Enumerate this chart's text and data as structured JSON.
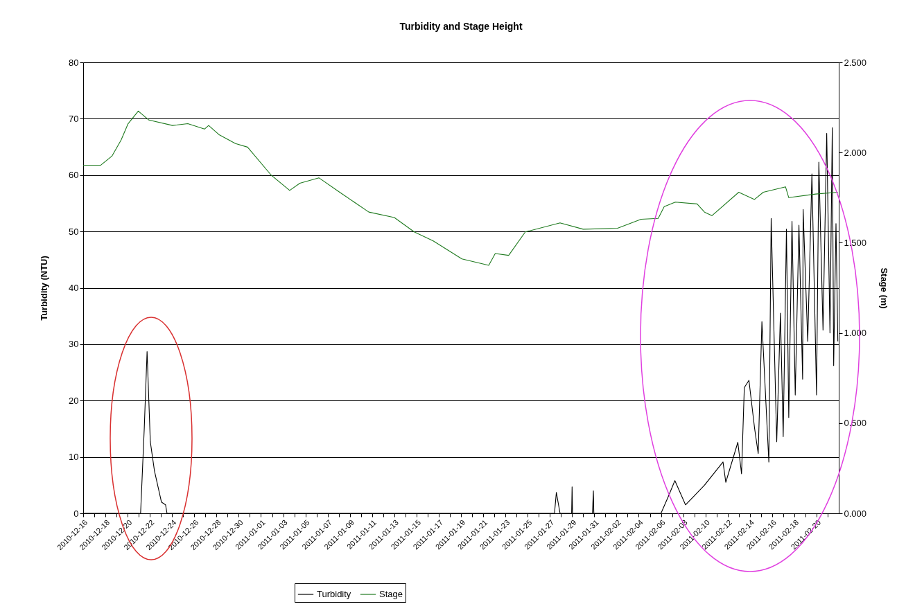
{
  "chart_data": {
    "type": "line",
    "title": "Turbidity and Stage Height",
    "ylabel": "Turbidity (NTU)",
    "y2label": "Stage (m)",
    "xlim": [
      "2010-12-16",
      "2011-02-22"
    ],
    "xticks": [
      "2010-12-16",
      {
        "value": "2010-12-17",
        "label": null
      },
      "2010-12-18",
      {
        "value": "2010-12-19",
        "label": null
      },
      "2010-12-20",
      {
        "value": "2010-12-21",
        "label": null
      },
      "2010-12-22",
      {
        "value": "2010-12-23",
        "label": null
      },
      "2010-12-24",
      {
        "value": "2010-12-25",
        "label": null
      },
      "2010-12-26",
      {
        "value": "2010-12-27",
        "label": null
      },
      "2010-12-28",
      {
        "value": "2010-12-29",
        "label": null
      },
      "2010-12-30",
      {
        "value": "2010-12-31",
        "label": null
      },
      "2011-01-01",
      {
        "value": "2011-01-02",
        "label": null
      },
      "2011-01-03",
      {
        "value": "2011-01-04",
        "label": null
      },
      "2011-01-05",
      {
        "value": "2011-01-06",
        "label": null
      },
      "2011-01-07",
      {
        "value": "2011-01-08",
        "label": null
      },
      "2011-01-09",
      {
        "value": "2011-01-10",
        "label": null
      },
      "2011-01-11",
      {
        "value": "2011-01-12",
        "label": null
      },
      "2011-01-13",
      {
        "value": "2011-01-14",
        "label": null
      },
      "2011-01-15",
      {
        "value": "2011-01-16",
        "label": null
      },
      "2011-01-17",
      {
        "value": "2011-01-18",
        "label": null
      },
      "2011-01-19",
      {
        "value": "2011-01-20",
        "label": null
      },
      "2011-01-21",
      {
        "value": "2011-01-22",
        "label": null
      },
      "2011-01-23",
      {
        "value": "2011-01-24",
        "label": null
      },
      "2011-01-25",
      {
        "value": "2011-01-26",
        "label": null
      },
      "2011-01-27",
      {
        "value": "2011-01-28",
        "label": null
      },
      "2011-01-29",
      {
        "value": "2011-01-30",
        "label": null
      },
      "2011-01-31",
      {
        "value": "2011-02-01",
        "label": null
      },
      "2011-02-02",
      {
        "value": "2011-02-03",
        "label": null
      },
      "2011-02-04",
      {
        "value": "2011-02-05",
        "label": null
      },
      "2011-02-06",
      {
        "value": "2011-02-07",
        "label": null
      },
      "2011-02-08",
      {
        "value": "2011-02-09",
        "label": null
      },
      "2011-02-10",
      {
        "value": "2011-02-11",
        "label": null
      },
      "2011-02-12",
      {
        "value": "2011-02-13",
        "label": null
      },
      "2011-02-14",
      {
        "value": "2011-02-15",
        "label": null
      },
      "2011-02-16",
      {
        "value": "2011-02-17",
        "label": null
      },
      "2011-02-18",
      {
        "value": "2011-02-19",
        "label": null
      },
      "2011-02-20",
      {
        "value": "2011-02-21",
        "label": null
      }
    ],
    "ylim": [
      0,
      80
    ],
    "yticks": [
      0,
      10,
      20,
      30,
      40,
      50,
      60,
      70,
      80
    ],
    "y2lim": [
      0,
      2.5
    ],
    "y2ticks": [
      {
        "value": 0,
        "label": "0.000"
      },
      {
        "value": 0.5,
        "label": "0.500"
      },
      {
        "value": 1,
        "label": "1.000"
      },
      {
        "value": 1.5,
        "label": "1.500"
      },
      {
        "value": 2,
        "label": "2.000"
      },
      {
        "value": 2.5,
        "label": "2.500"
      }
    ],
    "grid": "y",
    "legend": "bottom",
    "series": [
      {
        "name": "Turbidity",
        "color": "#000000",
        "x": [
          "2010-12-16T00:00",
          "2010-12-21T04:00",
          "2010-12-21T12:00",
          "2010-12-21T18:00",
          "2010-12-22T01:00",
          "2010-12-22T10:00",
          "2010-12-23T01:00",
          "2010-12-23T10:00",
          "2010-12-23T13:00",
          "2011-01-27T10:00",
          "2011-01-27T14:00",
          "2011-01-27T22:00",
          "2011-01-28T23:00",
          "2011-01-29T00:00",
          "2011-01-29T01:00",
          "2011-01-30T20:00",
          "2011-01-30T22:00",
          "2011-01-30T23:00",
          "2011-02-06T00:00",
          "2011-02-06T17:00",
          "2011-02-07T06:00",
          "2011-02-08T05:00",
          "2011-02-09T22:00",
          "2011-02-11T14:00",
          "2011-02-11T20:00",
          "2011-02-12T22:00",
          "2011-02-13T06:00",
          "2011-02-13T12:00",
          "2011-02-13T22:00",
          "2011-02-14T10:00",
          "2011-02-14T18:00",
          "2011-02-15T02:00",
          "2011-02-15T17:00",
          "2011-02-15T22:00",
          "2011-02-16T10:00",
          "2011-02-16T18:00",
          "2011-02-17T00:00",
          "2011-02-17T07:00",
          "2011-02-17T12:00",
          "2011-02-17T19:00",
          "2011-02-18T02:00",
          "2011-02-18T10:00",
          "2011-02-18T18:00",
          "2011-02-18T19:00",
          "2011-02-19T05:00",
          "2011-02-19T14:00",
          "2011-02-20T00:00",
          "2011-02-20T05:00",
          "2011-02-20T14:00",
          "2011-02-20T22:00",
          "2011-02-21T05:00",
          "2011-02-21T10:00",
          "2011-02-21T13:00",
          "2011-02-21T18:00",
          "2011-02-21T22:00"
        ],
        "values": [
          0,
          0,
          15.2,
          28.7,
          12.7,
          7.5,
          2.0,
          1.5,
          0,
          0,
          3.7,
          0,
          0,
          4.7,
          0,
          0,
          4.0,
          0,
          0,
          3.2,
          5.8,
          1.5,
          5.0,
          9.1,
          5.5,
          12.6,
          7.0,
          22.3,
          23.6,
          15.2,
          10.6,
          34.0,
          9.1,
          52.3,
          12.7,
          35.5,
          13.6,
          50.4,
          17.0,
          51.8,
          21.0,
          51.1,
          23.8,
          53.9,
          30.5,
          60.2,
          21.0,
          62.3,
          32.5,
          67.4,
          32.0,
          68.4,
          26.2,
          51.4,
          30.5
        ]
      },
      {
        "name": "Stage",
        "color": "#1f7a1f",
        "axis": "y2",
        "x": [
          "2010-12-16T00:00",
          "2010-12-17T14:00",
          "2010-12-18T14:00",
          "2010-12-19T10:00",
          "2010-12-20T01:00",
          "2010-12-20T23:00",
          "2010-12-21T22:00",
          "2010-12-24T01:00",
          "2010-12-25T10:00",
          "2010-12-26T22:00",
          "2010-12-27T07:00",
          "2010-12-28T05:00",
          "2010-12-29T17:00",
          "2010-12-30T19:00",
          "2011-01-01T22:00",
          "2011-01-03T14:00",
          "2011-01-04T12:00",
          "2011-01-06T05:00",
          "2011-01-08T02:00",
          "2011-01-10T17:00",
          "2011-01-13T00:00",
          "2011-01-14T19:00",
          "2011-01-16T12:00",
          "2011-01-19T02:00",
          "2011-01-21T12:00",
          "2011-01-22T02:00",
          "2011-01-23T07:00",
          "2011-01-24T19:00",
          "2011-01-27T22:00",
          "2011-01-30T00:00",
          "2011-02-02T02:00",
          "2011-02-04T05:00",
          "2011-02-05T18:00",
          "2011-02-06T07:00",
          "2011-02-07T07:00",
          "2011-02-09T06:00",
          "2011-02-09T22:00",
          "2011-02-10T14:00",
          "2011-02-13T00:00",
          "2011-02-14T10:00",
          "2011-02-15T05:00",
          "2011-02-17T05:00",
          "2011-02-17T12:00",
          "2011-02-19T22:00",
          "2011-02-21T22:00"
        ],
        "values": [
          1.93,
          1.93,
          1.98,
          2.07,
          2.16,
          2.23,
          2.18,
          2.15,
          2.16,
          2.13,
          2.15,
          2.1,
          2.05,
          2.03,
          1.875,
          1.79,
          1.83,
          1.86,
          1.78,
          1.67,
          1.64,
          1.56,
          1.51,
          1.41,
          1.375,
          1.44,
          1.43,
          1.56,
          1.61,
          1.575,
          1.58,
          1.63,
          1.635,
          1.7,
          1.725,
          1.715,
          1.67,
          1.65,
          1.78,
          1.74,
          1.78,
          1.81,
          1.75,
          1.77,
          1.78
        ]
      }
    ]
  }
}
